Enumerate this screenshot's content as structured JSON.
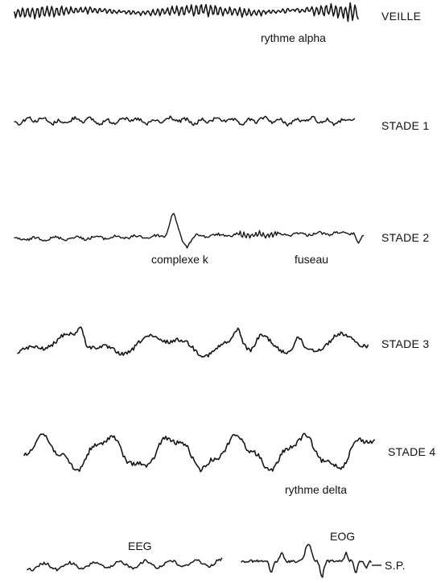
{
  "stages": [
    {
      "id": "veille",
      "label": "VEILLE",
      "annotations": [
        "rythme alpha"
      ]
    },
    {
      "id": "stade1",
      "label": "STADE 1",
      "annotations": []
    },
    {
      "id": "stade2",
      "label": "STADE 2",
      "annotations": [
        "complexe k",
        "fuseau"
      ]
    },
    {
      "id": "stade3",
      "label": "STADE 3",
      "annotations": []
    },
    {
      "id": "stade4",
      "label": "STADE 4",
      "annotations": [
        "rythme delta"
      ]
    },
    {
      "id": "sp",
      "label": "S.P.",
      "annotations": [
        "EEG",
        "EOG"
      ]
    }
  ],
  "colors": {
    "trace": "#151515",
    "text": "#111111",
    "background": "#ffffff"
  }
}
